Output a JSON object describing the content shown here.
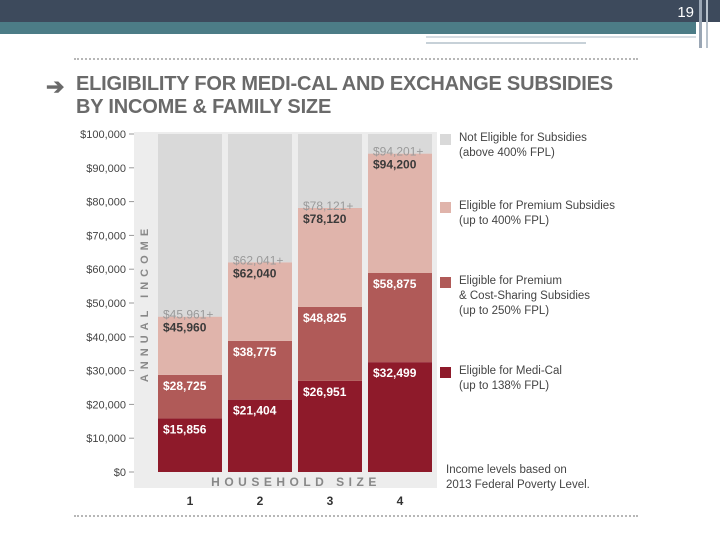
{
  "slide": {
    "page_number": "19"
  },
  "header": {
    "title_line1": "ELIGIBILITY FOR MEDI-CAL AND EXCHANGE SUBSIDIES",
    "title_line2": "BY INCOME & FAMILY SIZE"
  },
  "legend": [
    {
      "line1": "Not Eligible for Subsidies",
      "line2": "(above 400% FPL)",
      "color": "#d9d9d9"
    },
    {
      "line1": "Eligible for Premium Subsidies",
      "line2": "(up to 400% FPL)",
      "color": "#e0b4ab"
    },
    {
      "line1": "Eligible for Premium",
      "line2": "& Cost-Sharing Subsidies",
      "line3": "(up to 250% FPL)",
      "color": "#b05a58"
    },
    {
      "line1": "Eligible for Medi-Cal",
      "line2": "(up to 138% FPL)",
      "color": "#8e1a2a"
    }
  ],
  "note": {
    "line1": "Income levels based on",
    "line2": "2013 Federal Poverty Level."
  },
  "chart_data": {
    "type": "bar",
    "stacked": true,
    "title": "ELIGIBILITY FOR MEDI-CAL AND EXCHANGE SUBSIDIES BY INCOME & FAMILY SIZE",
    "xlabel": "HOUSEHOLD SIZE",
    "ylabel": "ANNUAL INCOME",
    "ylim": [
      0,
      100000
    ],
    "yticks": [
      0,
      10000,
      20000,
      30000,
      40000,
      50000,
      60000,
      70000,
      80000,
      90000,
      100000
    ],
    "ytick_labels": [
      "$0",
      "$10,000",
      "$20,000",
      "$30,000",
      "$40,000",
      "$50,000",
      "$60,000",
      "$70,000",
      "$80,000",
      "$90,000",
      "$100,000"
    ],
    "categories": [
      "1",
      "2",
      "3",
      "4"
    ],
    "series": [
      {
        "name": "Eligible for Medi-Cal (up to 138% FPL)",
        "color": "#8e1a2a",
        "upper": [
          15856,
          21404,
          26951,
          32499
        ]
      },
      {
        "name": "Eligible for Premium & Cost-Sharing Subsidies (up to 250% FPL)",
        "color": "#b05a58",
        "upper": [
          28725,
          38775,
          48825,
          58875
        ]
      },
      {
        "name": "Eligible for Premium Subsidies (up to 400% FPL)",
        "color": "#e0b4ab",
        "upper": [
          45960,
          62040,
          78120,
          94200
        ]
      },
      {
        "name": "Not Eligible for Subsidies (above 400% FPL)",
        "color": "#d9d9d9",
        "upper": [
          100000,
          100000,
          100000,
          100000
        ]
      }
    ],
    "data_labels": {
      "medi_cal": [
        "$15,856",
        "$21,404",
        "$26,951",
        "$32,499"
      ],
      "cost_sharing": [
        "$28,725",
        "$38,775",
        "$48,825",
        "$58,875"
      ],
      "premium": [
        "$45,960",
        "$62,040",
        "$78,120",
        "$94,200"
      ],
      "not_eligible": [
        "$45,961+",
        "$62,041+",
        "$78,121+",
        "$94,201+"
      ]
    }
  }
}
